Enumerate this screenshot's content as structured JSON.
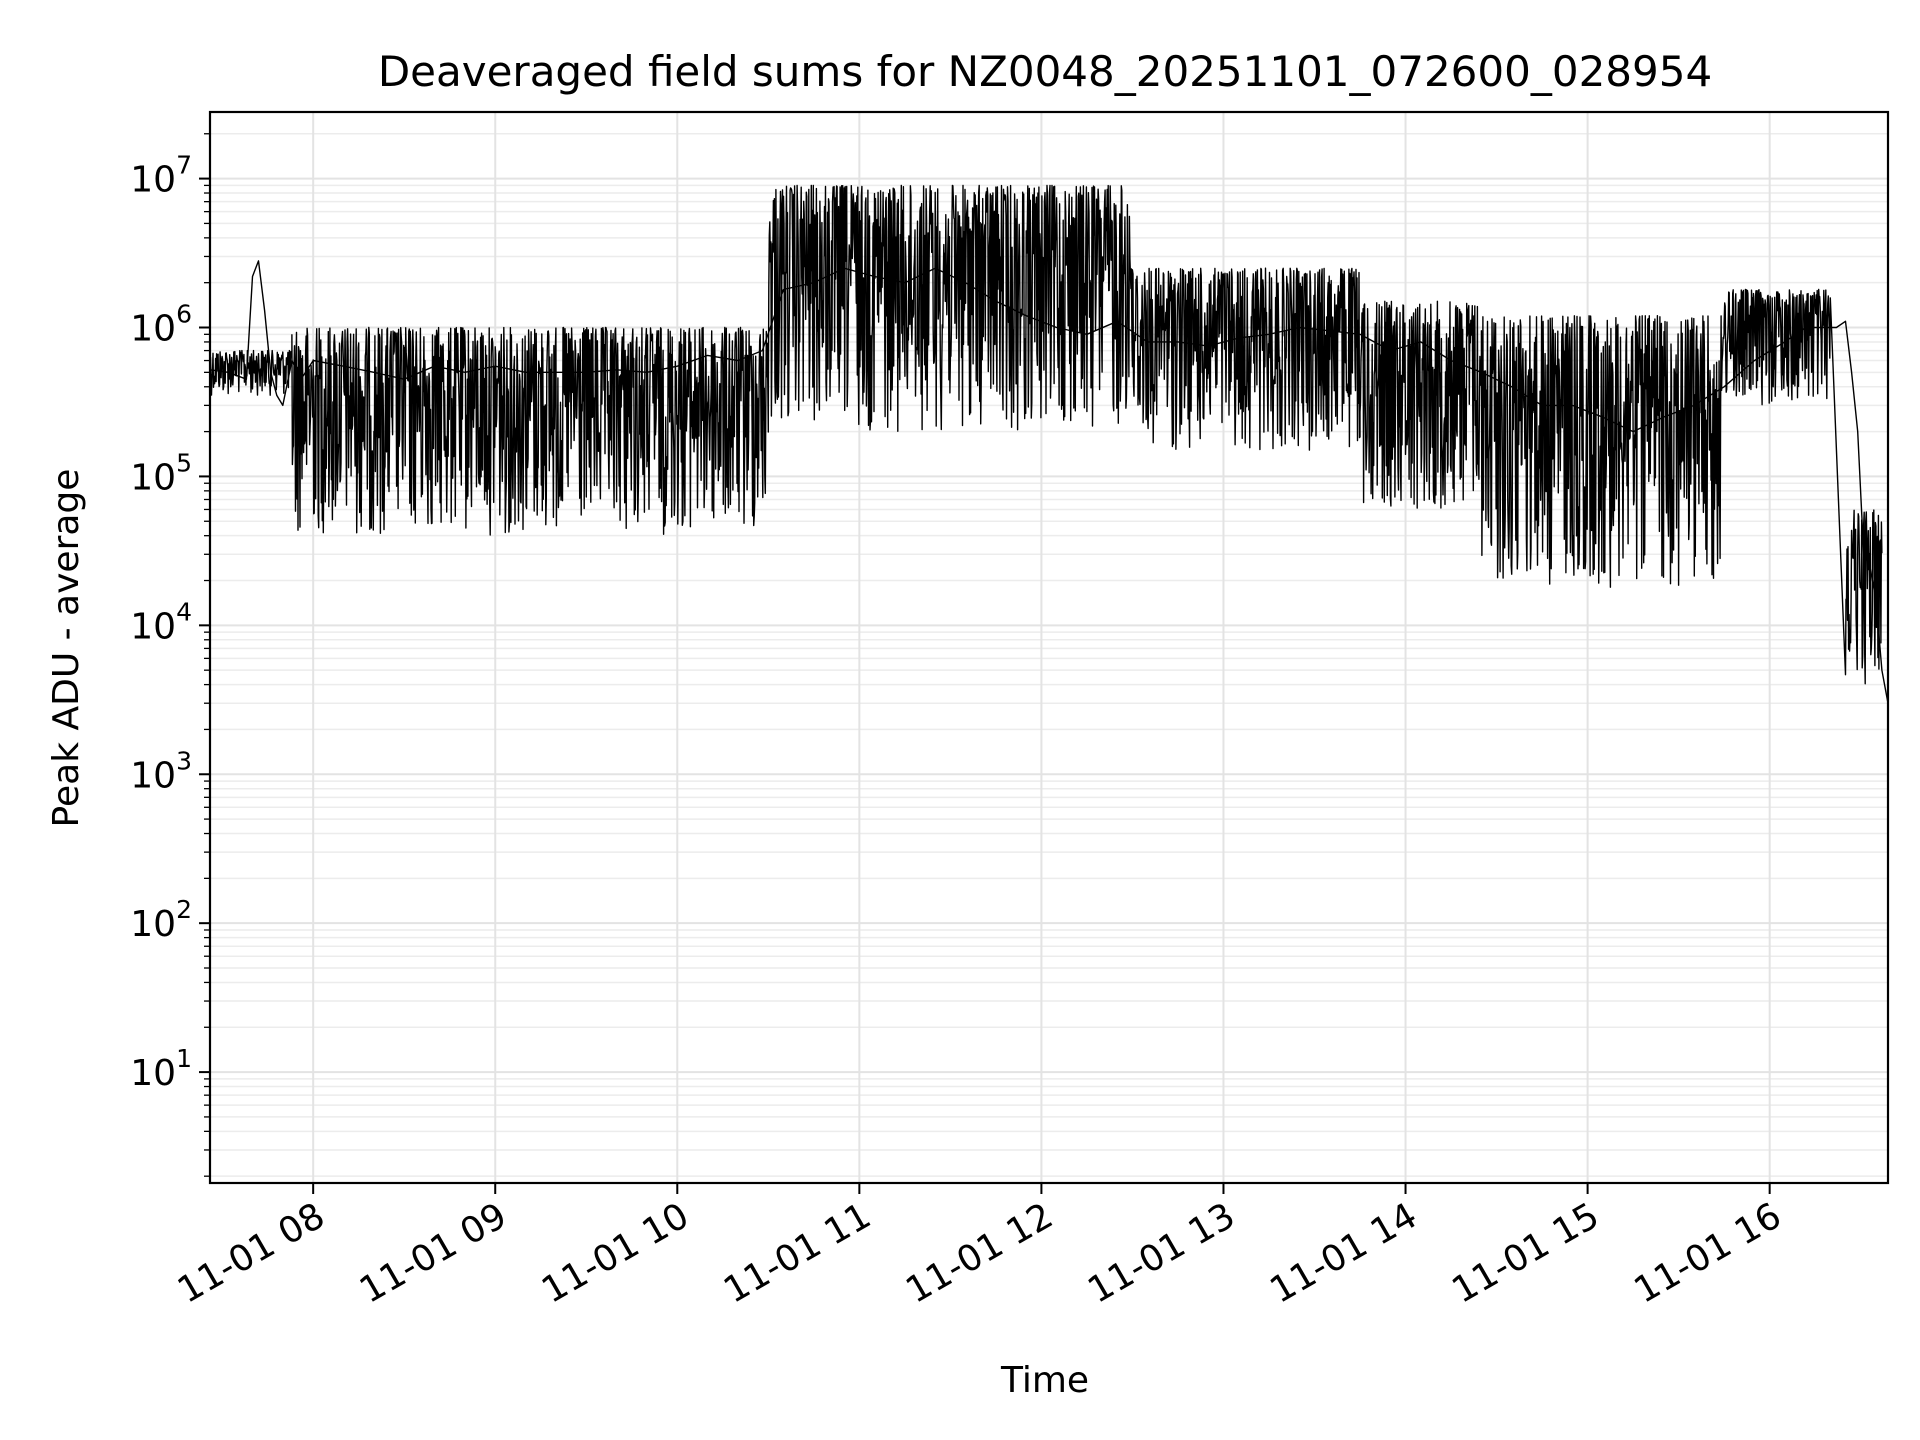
{
  "chart_data": {
    "type": "line",
    "title": "Deaveraged field sums for NZ0048_20251101_072600_028954",
    "xlabel": "Time",
    "ylabel": "Peak ADU - average",
    "yscale": "log",
    "ylim": [
      1.8,
      28000000
    ],
    "xlim": [
      "2025-11-01 07:26",
      "2025-11-01 16:39"
    ],
    "grid": true,
    "legend": "none",
    "line_color": "#000000",
    "x_ticks": [
      {
        "x": "2025-11-01 08:00",
        "label": "11-01 08"
      },
      {
        "x": "2025-11-01 09:00",
        "label": "11-01 09"
      },
      {
        "x": "2025-11-01 10:00",
        "label": "11-01 10"
      },
      {
        "x": "2025-11-01 11:00",
        "label": "11-01 11"
      },
      {
        "x": "2025-11-01 12:00",
        "label": "11-01 12"
      },
      {
        "x": "2025-11-01 13:00",
        "label": "11-01 13"
      },
      {
        "x": "2025-11-01 14:00",
        "label": "11-01 14"
      },
      {
        "x": "2025-11-01 15:00",
        "label": "11-01 15"
      },
      {
        "x": "2025-11-01 16:00",
        "label": "11-01 16"
      }
    ],
    "y_ticks": [
      {
        "y": 10,
        "base": "10",
        "exp": "1"
      },
      {
        "y": 100,
        "base": "10",
        "exp": "2"
      },
      {
        "y": 1000,
        "base": "10",
        "exp": "3"
      },
      {
        "y": 10000,
        "base": "10",
        "exp": "4"
      },
      {
        "y": 100000,
        "base": "10",
        "exp": "5"
      },
      {
        "y": 1000000,
        "base": "10",
        "exp": "6"
      },
      {
        "y": 10000000,
        "base": "10",
        "exp": "7"
      }
    ],
    "series": [
      {
        "x": [
          "2025-11-01 07:26",
          "2025-11-01 07:32",
          "2025-11-01 07:38",
          "2025-11-01 07:40",
          "2025-11-01 07:42",
          "2025-11-01 07:44",
          "2025-11-01 07:46",
          "2025-11-01 07:48",
          "2025-11-01 07:50",
          "2025-11-01 07:53",
          "2025-11-01 07:56",
          "2025-11-01 08:00",
          "2025-11-01 08:10",
          "2025-11-01 08:20",
          "2025-11-01 08:30",
          "2025-11-01 08:40",
          "2025-11-01 08:50",
          "2025-11-01 09:00",
          "2025-11-01 09:10",
          "2025-11-01 09:20",
          "2025-11-01 09:30",
          "2025-11-01 09:40",
          "2025-11-01 09:50",
          "2025-11-01 10:00",
          "2025-11-01 10:10",
          "2025-11-01 10:20",
          "2025-11-01 10:28",
          "2025-11-01 10:35",
          "2025-11-01 10:45",
          "2025-11-01 10:55",
          "2025-11-01 11:05",
          "2025-11-01 11:15",
          "2025-11-01 11:25",
          "2025-11-01 11:35",
          "2025-11-01 11:45",
          "2025-11-01 11:55",
          "2025-11-01 12:05",
          "2025-11-01 12:15",
          "2025-11-01 12:25",
          "2025-11-01 12:35",
          "2025-11-01 12:45",
          "2025-11-01 12:55",
          "2025-11-01 13:05",
          "2025-11-01 13:15",
          "2025-11-01 13:25",
          "2025-11-01 13:35",
          "2025-11-01 13:45",
          "2025-11-01 13:55",
          "2025-11-01 14:05",
          "2025-11-01 14:15",
          "2025-11-01 14:25",
          "2025-11-01 14:35",
          "2025-11-01 14:45",
          "2025-11-01 14:55",
          "2025-11-01 15:05",
          "2025-11-01 15:15",
          "2025-11-01 15:25",
          "2025-11-01 15:35",
          "2025-11-01 15:45",
          "2025-11-01 15:55",
          "2025-11-01 16:05",
          "2025-11-01 16:12",
          "2025-11-01 16:18",
          "2025-11-01 16:22",
          "2025-11-01 16:25",
          "2025-11-01 16:27",
          "2025-11-01 16:29",
          "2025-11-01 16:31",
          "2025-11-01 16:33",
          "2025-11-01 16:35",
          "2025-11-01 16:37",
          "2025-11-01 16:39"
        ],
        "y": [
          520000,
          500000,
          450000,
          2200000,
          2800000,
          1300000,
          500000,
          350000,
          300000,
          600000,
          450000,
          600000,
          550000,
          500000,
          450000,
          550000,
          500000,
          550000,
          500000,
          500000,
          500000,
          520000,
          500000,
          550000,
          650000,
          600000,
          700000,
          1800000,
          2000000,
          2500000,
          2200000,
          2000000,
          2500000,
          2000000,
          1500000,
          1200000,
          1000000,
          900000,
          1100000,
          800000,
          800000,
          750000,
          850000,
          900000,
          1000000,
          950000,
          900000,
          700000,
          800000,
          600000,
          500000,
          400000,
          300000,
          300000,
          250000,
          200000,
          250000,
          300000,
          400000,
          600000,
          800000,
          1000000,
          1000000,
          1000000,
          1100000,
          500000,
          200000,
          30000,
          25000,
          15000,
          5000,
          3000
        ]
      }
    ],
    "noise_band": [
      {
        "x_from": "2025-11-01 07:26",
        "x_to": "2025-11-01 07:53",
        "low": 350000,
        "high": 700000
      },
      {
        "x_from": "2025-11-01 07:53",
        "x_to": "2025-11-01 10:30",
        "low": 40000,
        "high": 1000000
      },
      {
        "x_from": "2025-11-01 10:30",
        "x_to": "2025-11-01 12:30",
        "low": 200000,
        "high": 9000000
      },
      {
        "x_from": "2025-11-01 12:30",
        "x_to": "2025-11-01 13:45",
        "low": 150000,
        "high": 2500000
      },
      {
        "x_from": "2025-11-01 13:45",
        "x_to": "2025-11-01 14:25",
        "low": 60000,
        "high": 1500000
      },
      {
        "x_from": "2025-11-01 14:25",
        "x_to": "2025-11-01 15:45",
        "low": 18000,
        "high": 1200000
      },
      {
        "x_from": "2025-11-01 15:45",
        "x_to": "2025-11-01 16:20",
        "low": 300000,
        "high": 1800000
      },
      {
        "x_from": "2025-11-01 16:25",
        "x_to": "2025-11-01 16:37",
        "low": 4000,
        "high": 60000
      }
    ]
  }
}
